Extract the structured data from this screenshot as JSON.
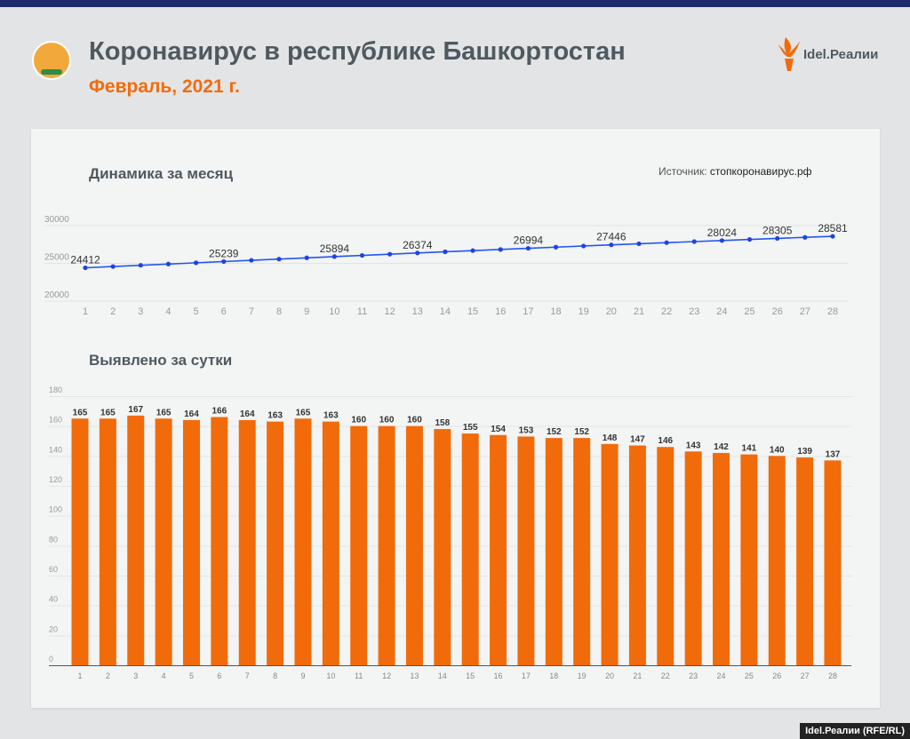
{
  "header": {
    "title": "Коронавирус в республике Башкортостан",
    "subtitle": "Февраль, 2021 г.",
    "brand": "Idel.Реалии",
    "credit": "Idel.Реалии (RFE/RL)",
    "accent": "#f26b0a",
    "line_color": "#2554f5"
  },
  "source": {
    "label": "Источник:",
    "value": "стопкоронавирус.рф"
  },
  "chart_data": [
    {
      "type": "line",
      "title": "Динамика за месяц",
      "x": [
        1,
        2,
        3,
        4,
        5,
        6,
        7,
        8,
        9,
        10,
        11,
        12,
        13,
        14,
        15,
        16,
        17,
        18,
        19,
        20,
        21,
        22,
        23,
        24,
        25,
        26,
        27,
        28
      ],
      "values": [
        24412,
        24577,
        24744,
        24909,
        25073,
        25239,
        25403,
        25566,
        25731,
        25894,
        26054,
        26214,
        26374,
        26532,
        26687,
        26841,
        26994,
        27146,
        27298,
        27446,
        27593,
        27739,
        27882,
        28024,
        28165,
        28305,
        28444,
        28581
      ],
      "labeled_days": [
        1,
        6,
        10,
        13,
        17,
        20,
        24,
        26,
        28
      ],
      "yticks": [
        "20000",
        "25000",
        "30000"
      ],
      "ylim": [
        20000,
        30000
      ],
      "grid": true
    },
    {
      "type": "bar",
      "title": "Выявлено за сутки",
      "x": [
        1,
        2,
        3,
        4,
        5,
        6,
        7,
        8,
        9,
        10,
        11,
        12,
        13,
        14,
        15,
        16,
        17,
        18,
        19,
        20,
        21,
        22,
        23,
        24,
        25,
        26,
        27,
        28
      ],
      "values": [
        165,
        165,
        167,
        165,
        164,
        166,
        164,
        163,
        165,
        163,
        160,
        160,
        160,
        158,
        155,
        154,
        153,
        152,
        152,
        148,
        147,
        146,
        143,
        142,
        141,
        140,
        139,
        137
      ],
      "yticks": [
        "0",
        "20",
        "40",
        "60",
        "80",
        "100",
        "120",
        "140",
        "160",
        "180"
      ],
      "ylim": [
        0,
        180
      ],
      "grid": true
    }
  ]
}
